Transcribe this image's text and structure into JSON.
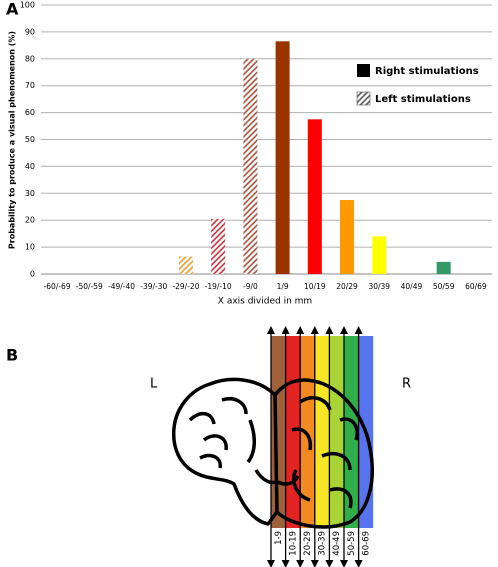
{
  "chart_data": {
    "type": "bar",
    "panel_label": "A",
    "y_label": "Probability to produce a visual phenomenon (%)",
    "x_label": "X axis divided in mm",
    "categories": [
      "-60/-69",
      "-50/-59",
      "-49/-40",
      "-39/-30",
      "-29/-20",
      "-19/-10",
      "-9/0",
      "1/9",
      "10/19",
      "20/29",
      "30/39",
      "40/49",
      "50/59",
      "60/69"
    ],
    "series": [
      {
        "name": "Right stimulations",
        "color": "#000000",
        "hatched": false,
        "values": [
          null,
          null,
          null,
          null,
          null,
          null,
          null,
          86.5,
          57.5,
          27.5,
          14,
          null,
          4.5,
          null
        ],
        "colors": [
          null,
          null,
          null,
          null,
          null,
          null,
          null,
          "#993300",
          "#ff0000",
          "#ff9900",
          "#ffff00",
          null,
          "#339966",
          null
        ]
      },
      {
        "name": "Left stimulations",
        "color": "#555555",
        "hatched": true,
        "values": [
          null,
          null,
          null,
          null,
          6.5,
          20.5,
          80,
          null,
          null,
          null,
          null,
          null,
          null,
          null
        ],
        "colors": [
          null,
          null,
          null,
          null,
          "#e39a2c",
          "#c0303a",
          "#a0503a",
          null,
          null,
          null,
          null,
          null,
          null,
          null
        ]
      }
    ],
    "ylim": [
      0,
      100
    ],
    "yticks": [
      0,
      10,
      20,
      30,
      40,
      50,
      60,
      70,
      80,
      90,
      100
    ],
    "grid": true
  },
  "panel_b": {
    "label": "B",
    "left": "L",
    "right": "R",
    "strips": [
      {
        "label": "1-9",
        "color": "#a0603a"
      },
      {
        "label": "10-19",
        "color": "#e42323"
      },
      {
        "label": "20-29",
        "color": "#f28a22"
      },
      {
        "label": "30-39",
        "color": "#f5e526"
      },
      {
        "label": "40-49",
        "color": "#a8d437"
      },
      {
        "label": "50-59",
        "color": "#2fae4a"
      },
      {
        "label": "60-69",
        "color": "#5873ee"
      }
    ]
  }
}
